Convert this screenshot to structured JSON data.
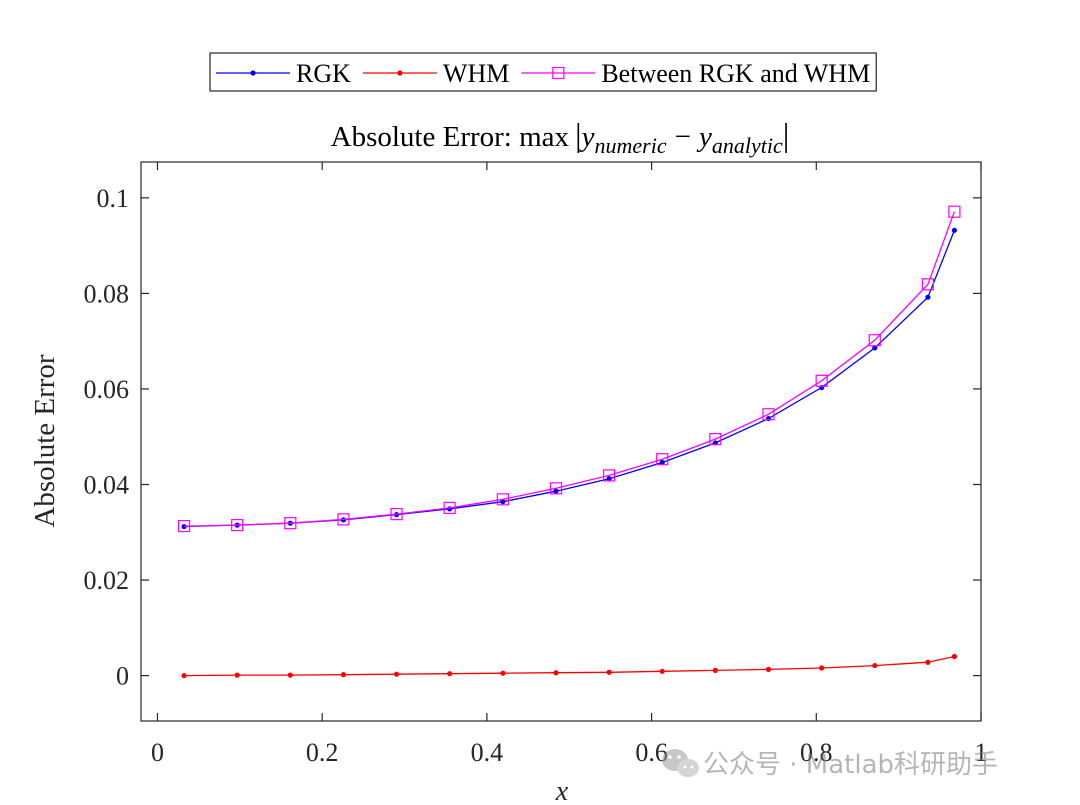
{
  "chart_data": {
    "type": "line",
    "title": {
      "prefix": "Absolute Error: ",
      "func": "max",
      "var1": "y",
      "sub1": "numeric",
      "minus": "−",
      "var2": "y",
      "sub2": "analytic"
    },
    "xlabel": "x",
    "ylabel": "Absolute Error",
    "xlim": [
      -0.02,
      1.0
    ],
    "ylim": [
      -0.0095,
      0.1075
    ],
    "x_ticks": [
      0,
      0.2,
      0.4,
      0.6,
      0.8,
      1
    ],
    "x_tick_labels": [
      "0",
      "0.2",
      "0.4",
      "0.6",
      "0.8",
      "1"
    ],
    "y_ticks": [
      0,
      0.02,
      0.04,
      0.06,
      0.08,
      0.1
    ],
    "y_tick_labels": [
      "0",
      "0.02",
      "0.04",
      "0.06",
      "0.08",
      "0.1"
    ],
    "grid": false,
    "legend_position": "top-center-outside",
    "x": [
      0.0323,
      0.0968,
      0.1613,
      0.2258,
      0.2903,
      0.3548,
      0.4194,
      0.4839,
      0.5484,
      0.6129,
      0.6774,
      0.7419,
      0.8065,
      0.871,
      0.9355,
      0.9677
    ],
    "series": [
      {
        "name": "RGK",
        "color": "#0000ff",
        "marker": "dot",
        "values": [
          0.0312,
          0.0315,
          0.0319,
          0.0326,
          0.0337,
          0.0349,
          0.0364,
          0.0386,
          0.0412,
          0.0446,
          0.0487,
          0.0538,
          0.0603,
          0.0686,
          0.0792,
          0.0932
        ]
      },
      {
        "name": "WHM",
        "color": "#ff0000",
        "marker": "dot",
        "values": [
          0.0,
          0.0001,
          0.0001,
          0.0002,
          0.0003,
          0.0004,
          0.0005,
          0.0006,
          0.0007,
          0.0009,
          0.0011,
          0.0013,
          0.0016,
          0.0021,
          0.0028,
          0.004
        ]
      },
      {
        "name": "Between RGK and WHM",
        "color": "#ff00ff",
        "marker": "square",
        "values": [
          0.0313,
          0.0315,
          0.0319,
          0.0327,
          0.0338,
          0.0351,
          0.0369,
          0.0392,
          0.0419,
          0.0453,
          0.0495,
          0.0547,
          0.0617,
          0.0702,
          0.0819,
          0.0971
        ]
      }
    ]
  },
  "watermark": {
    "text": "公众号 · Matlab科研助手",
    "icon": "wechat-icon"
  }
}
